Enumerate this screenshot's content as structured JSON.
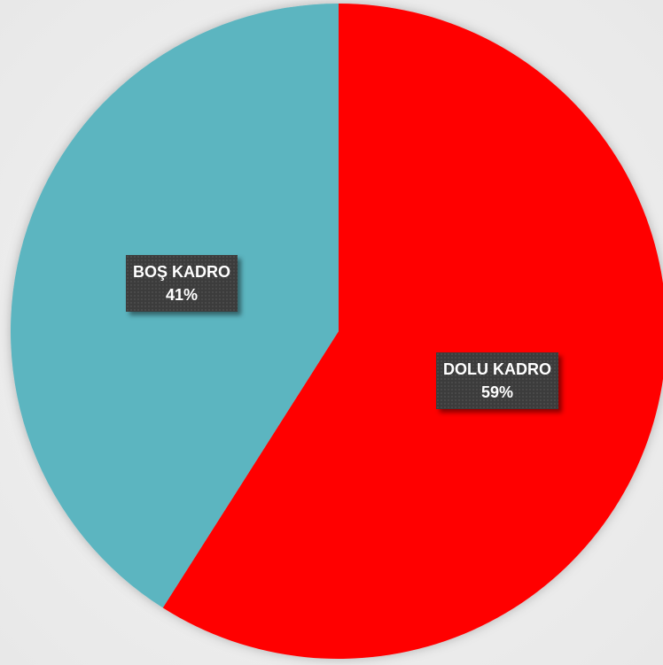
{
  "chart_data": {
    "type": "pie",
    "slices": [
      {
        "label": "DOLU KADRO",
        "value": 59,
        "percent_label": "59%",
        "color": "#ff0000"
      },
      {
        "label": "BOŞ KADRO",
        "value": 41,
        "percent_label": "41%",
        "color": "#5bb5c0"
      }
    ],
    "start_angle_deg": 0,
    "direction": "clockwise",
    "legend": "none",
    "data_labels": "inside-boxed"
  }
}
